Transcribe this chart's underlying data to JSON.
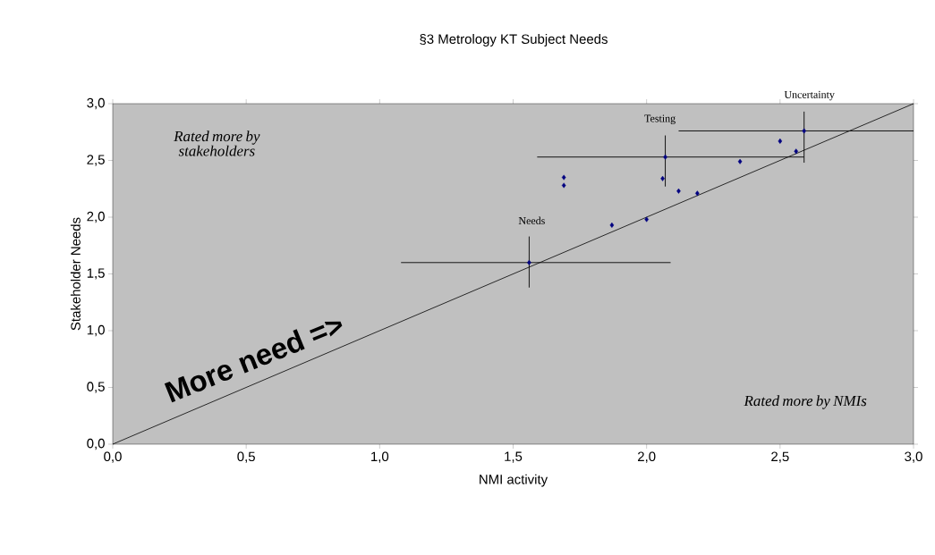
{
  "chart_data": {
    "type": "scatter",
    "title": "§3 Metrology KT Subject Needs",
    "xlabel": "NMI activity",
    "ylabel": "Stakeholder Needs",
    "xlim": [
      0,
      3
    ],
    "ylim": [
      0,
      3
    ],
    "xticks": [
      {
        "value": 0,
        "label": "0,0"
      },
      {
        "value": 0.5,
        "label": "0,5"
      },
      {
        "value": 1,
        "label": "1,0"
      },
      {
        "value": 1.5,
        "label": "1,5"
      },
      {
        "value": 2,
        "label": "2,0"
      },
      {
        "value": 2.5,
        "label": "2,5"
      },
      {
        "value": 3,
        "label": "3,0"
      }
    ],
    "yticks": [
      {
        "value": 0,
        "label": "0,0"
      },
      {
        "value": 0.5,
        "label": "0,5"
      },
      {
        "value": 1,
        "label": "1,0"
      },
      {
        "value": 1.5,
        "label": "1,5"
      },
      {
        "value": 2,
        "label": "2,0"
      },
      {
        "value": 2.5,
        "label": "2,5"
      },
      {
        "value": 3,
        "label": "3,0"
      }
    ],
    "grid": false,
    "marker": "diamond",
    "series": [
      {
        "color": "#000080",
        "x": [
          1.56,
          1.69,
          1.69,
          1.87,
          2.0,
          2.07,
          2.06,
          2.12,
          2.19,
          2.35,
          2.5,
          2.56,
          2.59
        ],
        "values": [
          1.6,
          2.35,
          2.28,
          1.93,
          1.98,
          2.53,
          2.34,
          2.23,
          2.21,
          2.49,
          2.67,
          2.58,
          2.76
        ],
        "errors": [
          [
            1.38,
            1.83
          ],
          null,
          null,
          null,
          null,
          [
            2.27,
            2.72
          ],
          null,
          null,
          null,
          null,
          null,
          null,
          [
            2.48,
            2.93
          ]
        ],
        "xerrors": [
          [
            1.08,
            2.09
          ],
          null,
          null,
          null,
          null,
          [
            1.59,
            2.59
          ],
          null,
          null,
          null,
          null,
          null,
          null,
          [
            2.12,
            3.0
          ]
        ]
      },
      {
        "type": "line",
        "color": "#000000",
        "marker": "none",
        "x": [
          0,
          3
        ],
        "values": [
          0,
          3
        ]
      }
    ],
    "annotations": [
      "Needs",
      "Testing",
      "Uncertainty",
      "*Rated more by stakeholders*",
      "**More need =>**",
      "*Rated more by NMIs*"
    ]
  }
}
